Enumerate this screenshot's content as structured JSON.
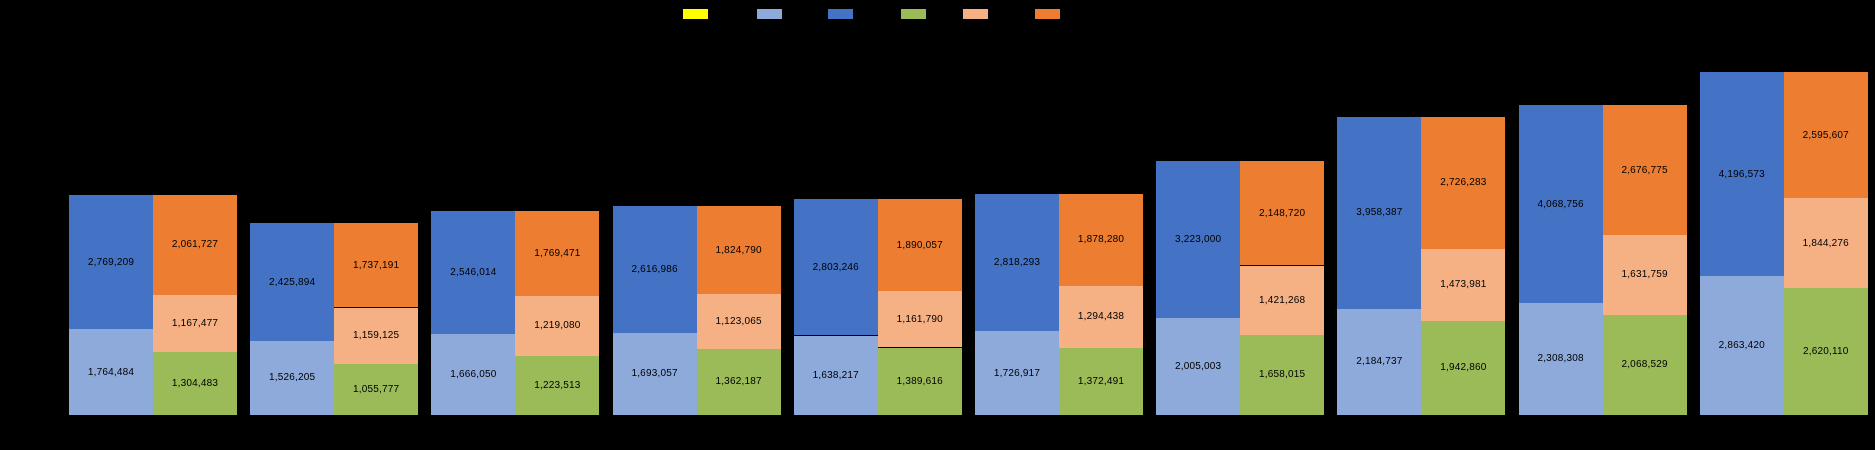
{
  "canvas": {
    "background_color": "#000000"
  },
  "legend": {
    "position": "top-center",
    "labels_visible": false
  },
  "chart_data": {
    "type": "bar",
    "subtype": "paired-stacked-columns",
    "title": "",
    "xlabel": "",
    "ylabel": "",
    "ylim": [
      0,
      7500000
    ],
    "gridlines": false,
    "axis_labels_visible": false,
    "data_labels": true,
    "label_format": "thousands-comma",
    "label_color": "#000000",
    "legend_order": [
      "yellow",
      "light_blue",
      "blue",
      "green",
      "peach",
      "orange"
    ],
    "colors": {
      "yellow": "#FFFF00",
      "light_blue": "#8EAADB",
      "blue": "#4472C4",
      "green": "#9BBB59",
      "peach": "#F5B183",
      "orange": "#ED7D31"
    },
    "stack_order": {
      "left": [
        "light_blue",
        "blue"
      ],
      "right": [
        "green",
        "peach",
        "orange"
      ]
    },
    "groups": [
      {
        "left": {
          "light_blue": 1764484,
          "blue": 2769209
        },
        "right": {
          "green": 1304483,
          "peach": 1167477,
          "orange": 2061727
        }
      },
      {
        "left": {
          "light_blue": 1526205,
          "blue": 2425894
        },
        "right": {
          "green": 1055777,
          "peach": 1159125,
          "orange": 1737191
        }
      },
      {
        "left": {
          "light_blue": 1666050,
          "blue": 2546014
        },
        "right": {
          "green": 1223513,
          "peach": 1219080,
          "orange": 1769471
        }
      },
      {
        "left": {
          "light_blue": 1693057,
          "blue": 2616986
        },
        "right": {
          "green": 1362187,
          "peach": 1123065,
          "orange": 1824790
        }
      },
      {
        "left": {
          "light_blue": 1638217,
          "blue": 2803246
        },
        "right": {
          "green": 1389616,
          "peach": 1161790,
          "orange": 1890057
        }
      },
      {
        "left": {
          "light_blue": 1726917,
          "blue": 2818293
        },
        "right": {
          "green": 1372491,
          "peach": 1294438,
          "orange": 1878280
        }
      },
      {
        "left": {
          "light_blue": 2005003,
          "blue": 3223000
        },
        "right": {
          "green": 1658015,
          "peach": 1421268,
          "orange": 2148720
        }
      },
      {
        "left": {
          "light_blue": 2184737,
          "blue": 3958387
        },
        "right": {
          "green": 1942860,
          "peach": 1473981,
          "orange": 2726283
        }
      },
      {
        "left": {
          "light_blue": 2308308,
          "blue": 4068756
        },
        "right": {
          "green": 2068529,
          "peach": 1631759,
          "orange": 2676775
        }
      },
      {
        "left": {
          "light_blue": 2863420,
          "blue": 4196573
        },
        "right": {
          "green": 2620110,
          "peach": 1844276,
          "orange": 2595607
        }
      }
    ]
  }
}
